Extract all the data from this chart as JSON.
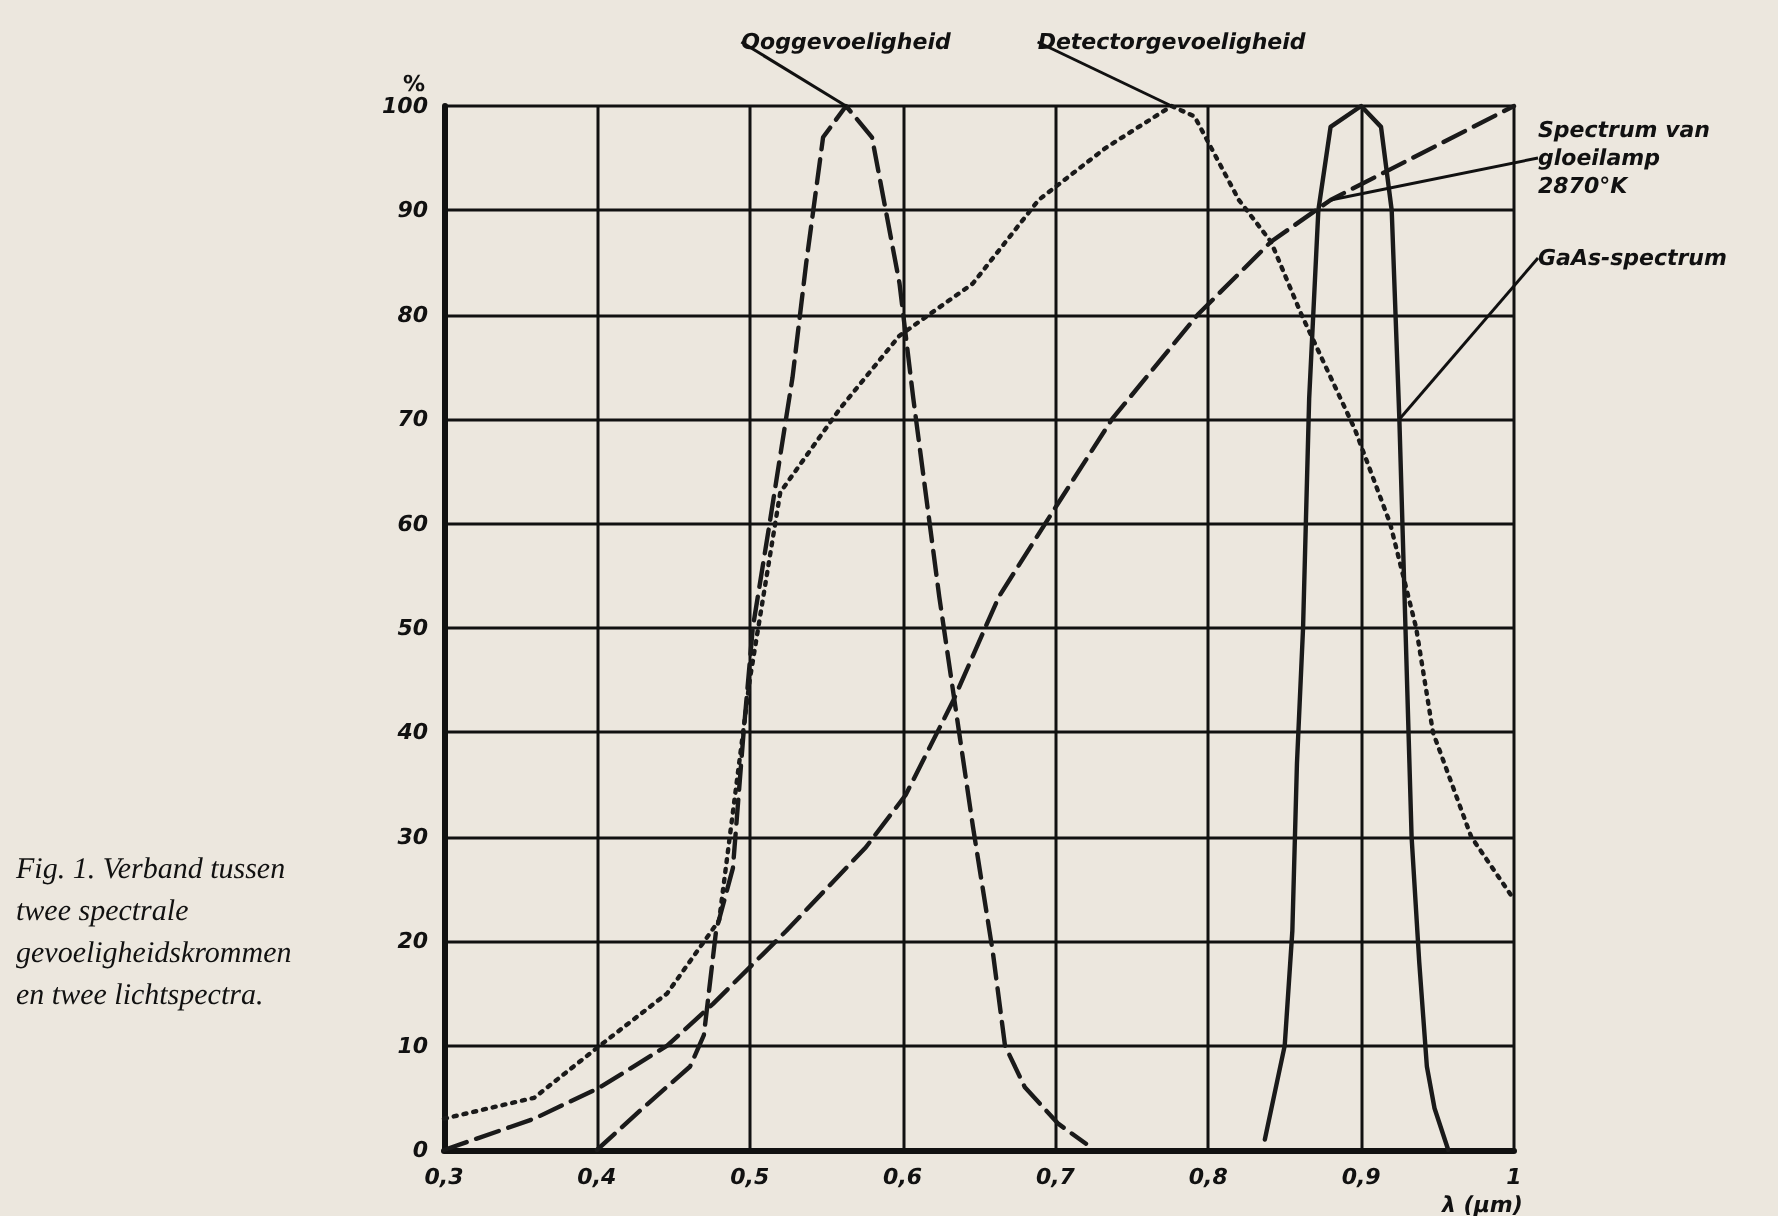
{
  "chart_data": {
    "type": "line",
    "xlabel": "λ (µm)",
    "ylabel": "%",
    "xlim": [
      0.3,
      1
    ],
    "xticks": [
      {
        "value": 0.3,
        "label": "0,3"
      },
      {
        "value": 0.4,
        "label": "0,4"
      },
      {
        "value": 0.5,
        "label": "0,5"
      },
      {
        "value": 0.6,
        "label": "0,6"
      },
      {
        "value": 0.7,
        "label": "0,7"
      },
      {
        "value": 0.8,
        "label": "0,8"
      },
      {
        "value": 0.9,
        "label": "0,9"
      },
      {
        "value": 1,
        "label": "1"
      }
    ],
    "ylim": [
      0,
      100
    ],
    "yticks": [
      0,
      10,
      20,
      30,
      40,
      50,
      60,
      70,
      80,
      90,
      100
    ],
    "grid": true,
    "legend": false,
    "marker": "none",
    "annotations": [
      "Fig. 1. Verband tussen twee spectrale gevoeligheidskrommen en twee lichtspectra."
    ],
    "series": [
      {
        "name": "Ooggevoeligheid",
        "color": "#1a1a1a",
        "line_style": "dashed",
        "x": [
          0.4,
          0.43,
          0.461,
          0.47,
          0.478,
          0.489,
          0.496,
          0.502,
          0.513,
          0.528,
          0.537,
          0.548,
          0.563,
          0.58,
          0.598,
          0.607,
          0.624,
          0.633,
          0.646,
          0.659,
          0.667,
          0.68,
          0.702,
          0.72
        ],
        "values": [
          0,
          4,
          8,
          11,
          21,
          27,
          40,
          50,
          60,
          74,
          85,
          97,
          100,
          97,
          83,
          72,
          53,
          44,
          31,
          19,
          10,
          6,
          2.5,
          0.6
        ]
      },
      {
        "name": "Detectorgevoeligheid",
        "color": "#1a1a1a",
        "line_style": "dotted",
        "x": [
          0.3,
          0.359,
          0.402,
          0.446,
          0.48,
          0.5,
          0.52,
          0.559,
          0.598,
          0.646,
          0.689,
          0.733,
          0.776,
          0.791,
          0.82,
          0.841,
          0.861,
          0.896,
          0.919,
          0.936,
          0.947,
          0.972,
          1
        ],
        "values": [
          3,
          5,
          10,
          15,
          22,
          45,
          63,
          71,
          78,
          83,
          91,
          96,
          100,
          99,
          91,
          87,
          80,
          69,
          60,
          50,
          40,
          30,
          24
        ]
      },
      {
        "name": "Spectrum van gloeilamp 2870°K",
        "color": "#1a1a1a",
        "line_style": "dashed",
        "x": [
          0.3,
          0.359,
          0.402,
          0.446,
          0.476,
          0.524,
          0.576,
          0.602,
          0.633,
          0.663,
          0.702,
          0.737,
          0.793,
          0.841,
          0.88,
          0.92,
          1
        ],
        "values": [
          0,
          3,
          6,
          10,
          14,
          21,
          29,
          34,
          43,
          53,
          62,
          70,
          80,
          87,
          91,
          94,
          100
        ]
      },
      {
        "name": "GaAs-spectrum",
        "color": "#1a1a1a",
        "line_style": "solid",
        "x": [
          0.837,
          0.85,
          0.855,
          0.858,
          0.862,
          0.866,
          0.872,
          0.88,
          0.9,
          0.913,
          0.92,
          0.925,
          0.929,
          0.933,
          0.938,
          0.943,
          0.948,
          0.957
        ],
        "values": [
          1,
          10,
          21,
          37,
          50,
          72,
          90,
          98,
          100,
          98,
          90,
          70,
          50,
          30,
          18,
          8,
          4,
          0
        ]
      }
    ]
  }
}
